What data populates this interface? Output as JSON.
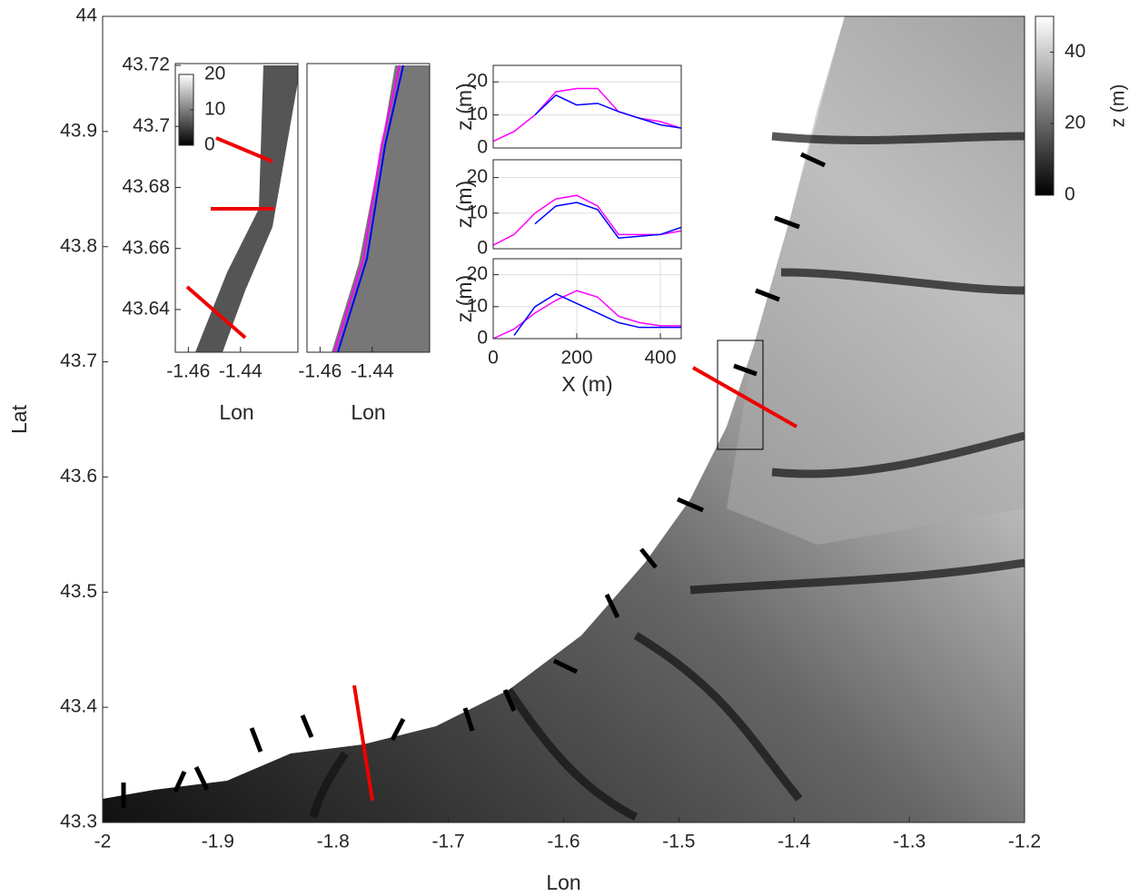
{
  "chart_data": [
    {
      "type": "map",
      "xlabel": "Lon",
      "ylabel": "Lat",
      "xlim": [
        -2,
        -1.2
      ],
      "xticks": [
        -2,
        -1.9,
        -1.8,
        -1.7,
        -1.6,
        -1.5,
        -1.4,
        -1.3,
        -1.2
      ],
      "ylim": [
        43.3,
        44
      ],
      "yticks": [
        43.3,
        43.4,
        43.5,
        43.6,
        43.7,
        43.8,
        43.9,
        44
      ],
      "colorbar": {
        "clim": [
          0,
          50
        ],
        "ticks": [
          0,
          20,
          40
        ],
        "label": "z (m)"
      }
    },
    {
      "type": "map",
      "xlabel": "Lon",
      "xlim": [
        -1.465,
        -1.418
      ],
      "xticks": [
        -1.46,
        -1.44
      ],
      "ylim": [
        43.626,
        43.7206
      ],
      "yticks": [
        43.64,
        43.66,
        43.68,
        43.7,
        43.72
      ],
      "colorbar": {
        "clim": [
          0,
          20
        ],
        "ticks": [
          0,
          10,
          20
        ]
      }
    },
    {
      "type": "map",
      "xlabel": "Lon",
      "xlim": [
        -1.465,
        -1.418
      ],
      "xticks": [
        -1.46,
        -1.44
      ],
      "ylim": [
        43.626,
        43.7206
      ]
    },
    {
      "type": "line",
      "ylabel": "z (m)",
      "xlim": [
        0,
        450
      ],
      "ylim": [
        0,
        25
      ],
      "yticks": [
        0,
        10,
        20
      ],
      "grid": true,
      "x": [
        0,
        50,
        100,
        150,
        200,
        250,
        300,
        350,
        400,
        450
      ],
      "series": [
        {
          "color": "#ff00ff",
          "values": [
            2,
            5,
            10,
            17,
            18,
            18,
            11,
            9,
            8,
            6
          ]
        },
        {
          "color": "#0000ff",
          "values": [
            null,
            null,
            10,
            16,
            13,
            13.5,
            11,
            9,
            7,
            6
          ]
        }
      ]
    },
    {
      "type": "line",
      "ylabel": "z (m)",
      "xlim": [
        0,
        450
      ],
      "ylim": [
        0,
        25
      ],
      "yticks": [
        0,
        10,
        20
      ],
      "grid": true,
      "x": [
        0,
        50,
        100,
        150,
        200,
        250,
        300,
        350,
        400,
        450
      ],
      "series": [
        {
          "color": "#ff00ff",
          "values": [
            1,
            4,
            10,
            14,
            15,
            12,
            4,
            4,
            4,
            5
          ]
        },
        {
          "color": "#0000ff",
          "values": [
            null,
            null,
            7,
            12,
            13,
            11,
            3,
            3.5,
            4,
            6
          ]
        }
      ]
    },
    {
      "type": "line",
      "ylabel": "z (m)",
      "xlabel": "X (m)",
      "xlim": [
        0,
        450
      ],
      "xticks": [
        0,
        200,
        400
      ],
      "ylim": [
        0,
        25
      ],
      "yticks": [
        0,
        10,
        20
      ],
      "grid": true,
      "x": [
        0,
        50,
        100,
        150,
        200,
        250,
        300,
        350,
        400,
        450
      ],
      "series": [
        {
          "color": "#ff00ff",
          "values": [
            0,
            3,
            8,
            12,
            15,
            13,
            7,
            5,
            4,
            4
          ]
        },
        {
          "color": "#0000ff",
          "values": [
            null,
            1,
            10,
            14,
            11,
            8,
            5,
            3.5,
            3.5,
            3.5
          ]
        }
      ]
    }
  ]
}
